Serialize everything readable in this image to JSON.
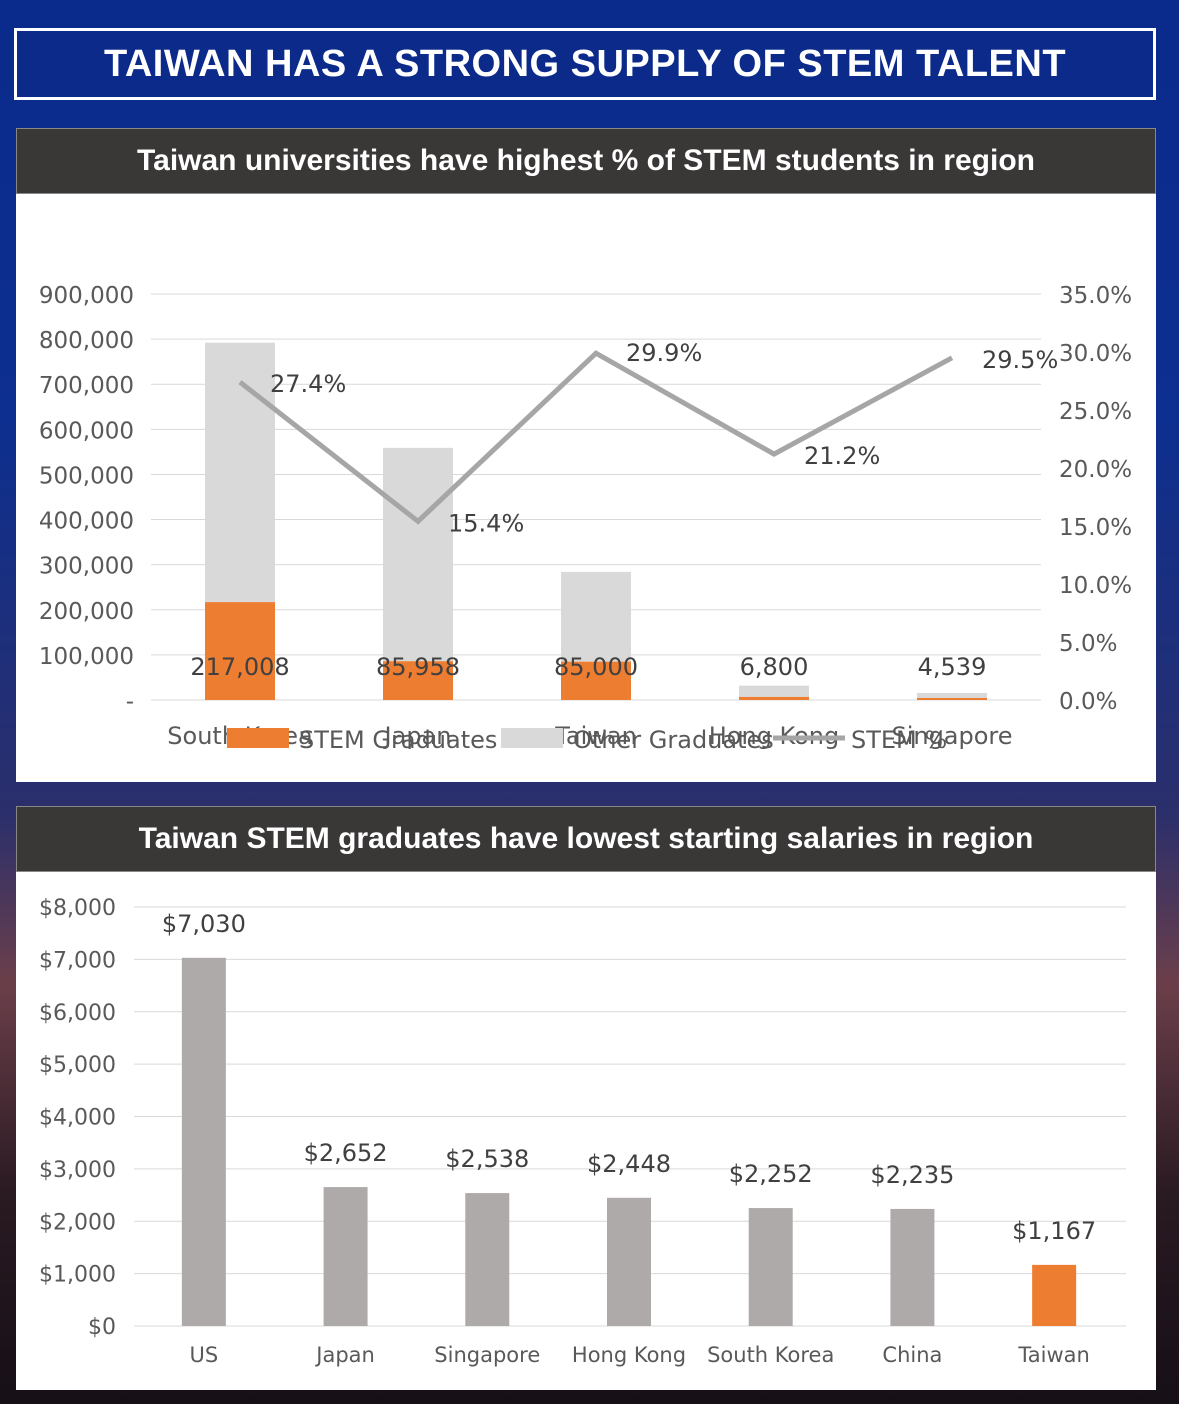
{
  "page_title": "TAIWAN HAS A STRONG SUPPLY OF STEM TALENT",
  "colors": {
    "stem": "#ed7d31",
    "other": "#d9d9d9",
    "line": "#a6a6a6",
    "salary": "#aeaaaa",
    "highlight": "#ed7d31"
  },
  "chart_data": [
    {
      "type": "bar",
      "stacked": true,
      "title": "Taiwan universities have highest % of STEM students in region",
      "categories": [
        "South Korea",
        "Japan",
        "Taiwan",
        "Hong Kong",
        "Singapore"
      ],
      "series": [
        {
          "name": "STEM Graduates",
          "values": [
            217008,
            85958,
            85000,
            6800,
            4539
          ],
          "labels": [
            "217,008",
            "85,958",
            "85,000",
            "6,800",
            "4,539"
          ]
        },
        {
          "name": "Other Graduates",
          "values": [
            575000,
            473000,
            199000,
            25000,
            11000
          ]
        },
        {
          "name": "STEM %",
          "axis": "right",
          "chart_type": "line",
          "values": [
            27.4,
            15.4,
            29.9,
            21.2,
            29.5
          ],
          "labels": [
            "27.4%",
            "15.4%",
            "29.9%",
            "21.2%",
            "29.5%"
          ]
        }
      ],
      "ylim": [
        0,
        900000
      ],
      "yticks": [
        "-",
        "100,000",
        "200,000",
        "300,000",
        "400,000",
        "500,000",
        "600,000",
        "700,000",
        "800,000",
        "900,000"
      ],
      "y2lim": [
        0,
        35
      ],
      "y2ticks": [
        "0.0%",
        "5.0%",
        "10.0%",
        "15.0%",
        "20.0%",
        "25.0%",
        "30.0%",
        "35.0%"
      ],
      "legend": "bottom",
      "grid": true
    },
    {
      "type": "bar",
      "title": "Taiwan STEM graduates have lowest starting salaries in region",
      "categories": [
        "US",
        "Japan",
        "Singapore",
        "Hong Kong",
        "South Korea",
        "China",
        "Taiwan"
      ],
      "values": [
        7030,
        2652,
        2538,
        2448,
        2252,
        2235,
        1167
      ],
      "labels": [
        "$7,030",
        "$2,652",
        "$2,538",
        "$2,448",
        "$2,252",
        "$2,235",
        "$1,167"
      ],
      "highlight": "Taiwan",
      "ylim": [
        0,
        8000
      ],
      "yticks": [
        "$0",
        "$1,000",
        "$2,000",
        "$3,000",
        "$4,000",
        "$5,000",
        "$6,000",
        "$7,000",
        "$8,000"
      ],
      "grid": true
    }
  ]
}
